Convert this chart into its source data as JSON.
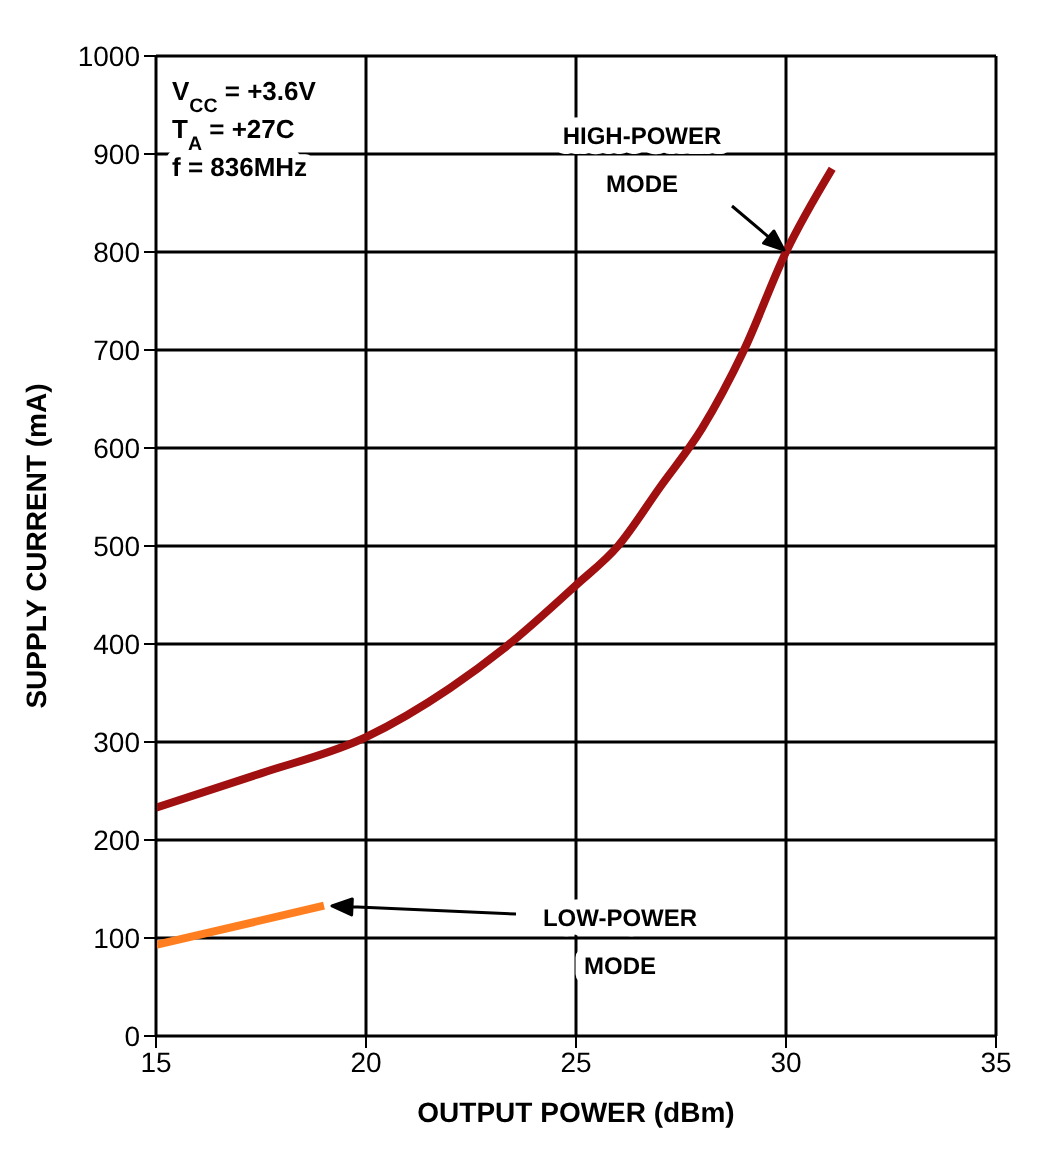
{
  "chart_data": {
    "type": "line",
    "xlabel": "OUTPUT POWER (dBm)",
    "ylabel": "SUPPLY CURRENT (mA)",
    "xlim": [
      15,
      35
    ],
    "xticks": [
      15,
      20,
      25,
      30,
      35
    ],
    "ylim": [
      0,
      1000
    ],
    "yticks": [
      0,
      100,
      200,
      300,
      400,
      500,
      600,
      700,
      800,
      900,
      1000
    ],
    "grid": true,
    "legend": false,
    "marker": "none",
    "line_style": "solid",
    "series": [
      {
        "color": "#a01010",
        "x": [
          15,
          17.5,
          20,
          22,
          23.3,
          25,
          26,
          27,
          28,
          29,
          30,
          31.1
        ],
        "values": [
          233,
          268,
          305,
          355,
          396,
          460,
          500,
          560,
          620,
          700,
          800,
          885
        ]
      },
      {
        "color": "#ff7f20",
        "x": [
          15,
          19
        ],
        "values": [
          93,
          133
        ]
      }
    ],
    "annotations": [
      "V$_{CC}$ = +3.6V",
      "T$_{A}$ = +27C",
      "f = 836MHz",
      "HIGH-POWER MODE",
      "LOW-POWER MODE"
    ]
  }
}
